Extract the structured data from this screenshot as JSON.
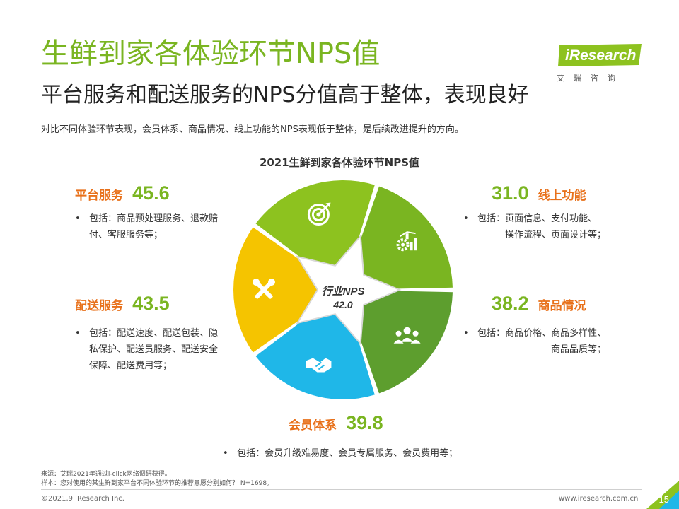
{
  "header": {
    "title": "生鲜到家各体验环节NPS值",
    "subtitle": "平台服务和配送服务的NPS分值高于整体，表现良好",
    "description": "对比不同体验环节表现，会员体系、商品情况、线上功能的NPS表现低于整体，是后续改进提升的方向。"
  },
  "logo": {
    "name": "iResearch",
    "sub": "艾瑞咨询"
  },
  "chart_data": {
    "type": "pie",
    "title": "2021生鲜到家各体验环节NPS值",
    "center": {
      "label": "行业NPS",
      "value": "42.0"
    },
    "segments": [
      {
        "name": "平台服务",
        "value": 45.6,
        "color": "#8dc21f",
        "icon": "target-icon",
        "desc": "包括：商品预处理服务、退款赔付、客服服务等；"
      },
      {
        "name": "线上功能",
        "value": 31.0,
        "color": "#7ab521",
        "icon": "gears-chart-icon",
        "desc": "包括：页面信息、支付功能、操作流程、页面设计等；"
      },
      {
        "name": "商品情况",
        "value": 38.2,
        "color": "#5d9e2e",
        "icon": "people-group-icon",
        "desc": "包括：商品价格、商品多样性、商品品质等；"
      },
      {
        "name": "会员体系",
        "value": 39.8,
        "color": "#1fb7e8",
        "icon": "handshake-icon",
        "desc": "包括：会员升级难易度、会员专属服务、会员费用等；"
      },
      {
        "name": "配送服务",
        "value": 43.5,
        "color": "#f5c400",
        "icon": "tools-icon",
        "desc": "包括：配送速度、配送包装、隐私保护、配送员服务、配送安全保障、配送费用等；"
      }
    ]
  },
  "labels": {
    "platform": {
      "name": "平台服务",
      "value": "45.6",
      "desc1": "包括：商品预处理服务、退款赔",
      "desc2": "付、客服服务等；"
    },
    "online": {
      "name": "线上功能",
      "value": "31.0",
      "desc1": "包括：页面信息、支付功能、",
      "desc2": "操作流程、页面设计等；"
    },
    "delivery": {
      "name": "配送服务",
      "value": "43.5",
      "desc1": "包括：配送速度、配送包装、隐",
      "desc2": "私保护、配送员服务、配送安全",
      "desc3": "保障、配送费用等；"
    },
    "goods": {
      "name": "商品情况",
      "value": "38.2",
      "desc1": "包括：商品价格、商品多样性、",
      "desc2": "商品品质等；"
    },
    "member": {
      "name": "会员体系",
      "value": "39.8",
      "desc1": "包括：会员升级难易度、会员专属服务、会员费用等；"
    }
  },
  "source": {
    "line1": "来源：艾瑞2021年通过i-click网络调研获得。",
    "line2": "样本：您对使用的某生鲜到家平台不同体验环节的推荐意愿分别如何？ N=1698。"
  },
  "footer": {
    "copyright": "©2021.9 iResearch Inc.",
    "website": "www.iresearch.com.cn",
    "page": "15"
  },
  "colors": {
    "title_green": "#7ab521",
    "label_orange": "#e8711b",
    "accent_green": "#8dc21f"
  }
}
